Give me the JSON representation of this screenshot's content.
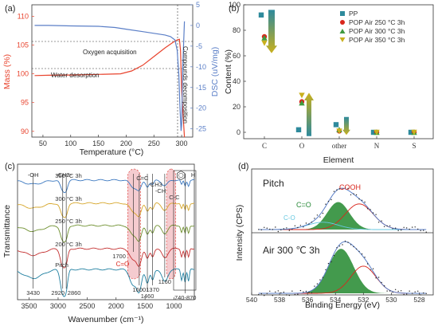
{
  "chart_data": [
    {
      "panel": "(a)",
      "type": "line",
      "xlabel": "Temperature (°C)",
      "ylabel": "Mass (%)",
      "y2label": "DSC (uV/mg)",
      "xticks": [
        "50",
        "100",
        "150",
        "200",
        "250",
        "300"
      ],
      "yticks": [
        "90",
        "95",
        "100",
        "105",
        "110"
      ],
      "y2ticks": [
        "5",
        "0",
        "-5",
        "-10",
        "-15",
        "-20",
        "-25"
      ],
      "xlim": [
        30,
        320
      ],
      "ylim": [
        89,
        112
      ],
      "y2lim": [
        -27,
        5
      ],
      "annotations": [
        "Oxygen acquisition",
        "Water desorption",
        "Compounds decomposition"
      ],
      "series": [
        {
          "name": "Mass",
          "color": "#e8432d",
          "x": [
            35,
            60,
            100,
            150,
            190,
            210,
            230,
            250,
            270,
            285,
            292,
            296,
            298,
            300,
            305
          ],
          "y": [
            99.7,
            99.75,
            99.8,
            99.9,
            100.0,
            100.5,
            101.5,
            103.0,
            104.5,
            105.5,
            105.9,
            106.0,
            104.0,
            97.0,
            89.0
          ]
        },
        {
          "name": "DSC",
          "color": "#5b7fc7",
          "x": [
            35,
            60,
            100,
            150,
            180,
            200,
            230,
            250,
            270,
            280,
            288,
            292,
            295,
            297,
            299,
            300,
            302,
            305
          ],
          "y": [
            0,
            0,
            -0.1,
            -0.2,
            -0.5,
            -0.9,
            -1.5,
            -1.9,
            -2.3,
            -2.7,
            -3.5,
            -6,
            -12,
            -20,
            -25.5,
            -24,
            -10,
            1
          ]
        }
      ]
    },
    {
      "panel": "(b)",
      "type": "scatter",
      "xlabel": "Element",
      "ylabel": "Content (%)",
      "categories": [
        "C",
        "O",
        "other",
        "N",
        "S"
      ],
      "ylim": [
        -5,
        100
      ],
      "yticks": [
        "0",
        "20",
        "40",
        "60",
        "80",
        "100"
      ],
      "legend_position": "top-right",
      "series": [
        {
          "name": "PP",
          "color": "#2e8a9c",
          "marker": "square",
          "values": [
            92,
            2,
            6,
            0,
            0
          ]
        },
        {
          "name": "POP Air 250 °C 3h",
          "color": "#d9261c",
          "marker": "circle",
          "values": [
            75,
            24,
            1,
            0,
            0
          ]
        },
        {
          "name": "POP Air 300 °C 3h",
          "color": "#3f9a3f",
          "marker": "triangle-up",
          "values": [
            74,
            23,
            2,
            0,
            0
          ]
        },
        {
          "name": "POP Air 350 °C 3h",
          "color": "#c9b01d",
          "marker": "triangle-down",
          "values": [
            70,
            29,
            1,
            0,
            0
          ]
        }
      ]
    },
    {
      "panel": "(c)",
      "type": "line",
      "xlabel": "Wavenumber (cm⁻¹)",
      "ylabel": "Transmittance",
      "xticks": [
        "3500",
        "3000",
        "2500",
        "2000",
        "1500",
        "1000"
      ],
      "xlim": [
        3700,
        650
      ],
      "peak_labels": [
        "3430",
        "2920",
        "2860",
        "1700",
        "1600",
        "1460",
        "1370",
        "1160",
        "740-870"
      ],
      "group_labels": [
        "-OH",
        "-CH2-",
        "C=C",
        "-CH3",
        "-CH",
        "C-C",
        "C=O",
        "H"
      ],
      "series": [
        {
          "name": "350 °C 3h",
          "color": "#3b78c0"
        },
        {
          "name": "300 °C 3h",
          "color": "#d6a62a"
        },
        {
          "name": "250 °C 3h",
          "color": "#6e8f2e"
        },
        {
          "name": "200 °C 3h",
          "color": "#c43030"
        },
        {
          "name": "Pitch",
          "color": "#1f7fa0"
        }
      ]
    },
    {
      "panel": "(d)",
      "type": "line",
      "xlabel": "Binding Energy (eV)",
      "ylabel": "Intensity (CPS)",
      "xticks": [
        "540",
        "538",
        "536",
        "534",
        "532",
        "530",
        "528"
      ],
      "xlim": [
        540,
        527
      ],
      "subplots": [
        {
          "label": "Pitch",
          "components": [
            "C=O",
            "C-O",
            "COOH"
          ]
        },
        {
          "label": "Air 300 ℃ 3h"
        }
      ]
    }
  ]
}
